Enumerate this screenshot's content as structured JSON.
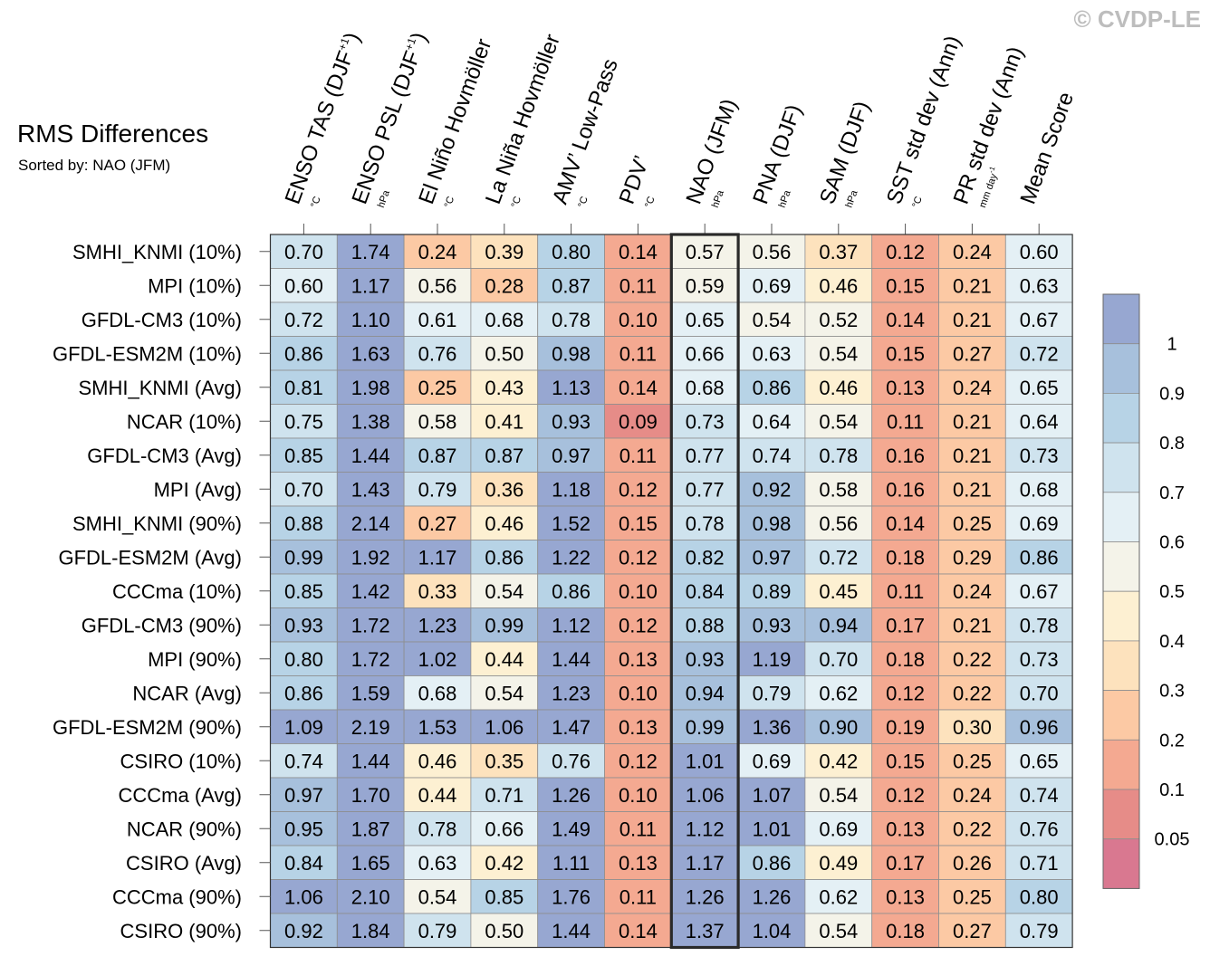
{
  "copyright": "© CVDP-LE",
  "chart_data": {
    "type": "heatmap",
    "title": "RMS Differences",
    "subtitle": "Sorted by: NAO (JFM)",
    "highlight_column": "NAO (JFM)",
    "columns": [
      {
        "name": "ENSO TAS (DJF",
        "sup": "+1",
        "close": ")",
        "unit": "°C"
      },
      {
        "name": "ENSO PSL (DJF",
        "sup": "+1",
        "close": ")",
        "unit": "hPa"
      },
      {
        "name": "El Niño Hovmöller",
        "sup": "",
        "close": "",
        "unit": "°C"
      },
      {
        "name": "La Niña Hovmöller",
        "sup": "",
        "close": "",
        "unit": "°C"
      },
      {
        "name": "AMV’ Low-Pass",
        "sup": "",
        "close": "",
        "unit": "°C"
      },
      {
        "name": "PDV’",
        "sup": "",
        "close": "",
        "unit": "°C"
      },
      {
        "name": "NAO (JFM)",
        "sup": "",
        "close": "",
        "unit": "hPa"
      },
      {
        "name": "PNA (DJF)",
        "sup": "",
        "close": "",
        "unit": "hPa"
      },
      {
        "name": "SAM (DJF)",
        "sup": "",
        "close": "",
        "unit": "hPa"
      },
      {
        "name": "SST std dev (Ann)",
        "sup": "",
        "close": "",
        "unit": "°C"
      },
      {
        "name": "PR std dev (Ann)",
        "sup": "",
        "close": "",
        "unit": "mm day",
        "unit_sup": "-1"
      },
      {
        "name": "Mean Score",
        "sup": "",
        "close": "",
        "unit": ""
      }
    ],
    "rows": [
      {
        "label": "SMHI_KNMI (10%)",
        "values": [
          0.7,
          1.74,
          0.24,
          0.39,
          0.8,
          0.14,
          0.57,
          0.56,
          0.37,
          0.12,
          0.24,
          0.6
        ]
      },
      {
        "label": "MPI (10%)",
        "values": [
          0.6,
          1.17,
          0.56,
          0.28,
          0.87,
          0.11,
          0.59,
          0.69,
          0.46,
          0.15,
          0.21,
          0.63
        ]
      },
      {
        "label": "GFDL-CM3 (10%)",
        "values": [
          0.72,
          1.1,
          0.61,
          0.68,
          0.78,
          0.1,
          0.65,
          0.54,
          0.52,
          0.14,
          0.21,
          0.67
        ]
      },
      {
        "label": "GFDL-ESM2M (10%)",
        "values": [
          0.86,
          1.63,
          0.76,
          0.5,
          0.98,
          0.11,
          0.66,
          0.63,
          0.54,
          0.15,
          0.27,
          0.72
        ]
      },
      {
        "label": "SMHI_KNMI (Avg)",
        "values": [
          0.81,
          1.98,
          0.25,
          0.43,
          1.13,
          0.14,
          0.68,
          0.86,
          0.46,
          0.13,
          0.24,
          0.65
        ]
      },
      {
        "label": "NCAR (10%)",
        "values": [
          0.75,
          1.38,
          0.58,
          0.41,
          0.93,
          0.09,
          0.73,
          0.64,
          0.54,
          0.11,
          0.21,
          0.64
        ]
      },
      {
        "label": "GFDL-CM3 (Avg)",
        "values": [
          0.85,
          1.44,
          0.87,
          0.87,
          0.97,
          0.11,
          0.77,
          0.74,
          0.78,
          0.16,
          0.21,
          0.73
        ]
      },
      {
        "label": "MPI (Avg)",
        "values": [
          0.7,
          1.43,
          0.79,
          0.36,
          1.18,
          0.12,
          0.77,
          0.92,
          0.58,
          0.16,
          0.21,
          0.68
        ]
      },
      {
        "label": "SMHI_KNMI (90%)",
        "values": [
          0.88,
          2.14,
          0.27,
          0.46,
          1.52,
          0.15,
          0.78,
          0.98,
          0.56,
          0.14,
          0.25,
          0.69
        ]
      },
      {
        "label": "GFDL-ESM2M (Avg)",
        "values": [
          0.99,
          1.92,
          1.17,
          0.86,
          1.22,
          0.12,
          0.82,
          0.97,
          0.72,
          0.18,
          0.29,
          0.86
        ]
      },
      {
        "label": "CCCma (10%)",
        "values": [
          0.85,
          1.42,
          0.33,
          0.54,
          0.86,
          0.1,
          0.84,
          0.89,
          0.45,
          0.11,
          0.24,
          0.67
        ]
      },
      {
        "label": "GFDL-CM3 (90%)",
        "values": [
          0.93,
          1.72,
          1.23,
          0.99,
          1.12,
          0.12,
          0.88,
          0.93,
          0.94,
          0.17,
          0.21,
          0.78
        ]
      },
      {
        "label": "MPI (90%)",
        "values": [
          0.8,
          1.72,
          1.02,
          0.44,
          1.44,
          0.13,
          0.93,
          1.19,
          0.7,
          0.18,
          0.22,
          0.73
        ]
      },
      {
        "label": "NCAR (Avg)",
        "values": [
          0.86,
          1.59,
          0.68,
          0.54,
          1.23,
          0.1,
          0.94,
          0.79,
          0.62,
          0.12,
          0.22,
          0.7
        ]
      },
      {
        "label": "GFDL-ESM2M (90%)",
        "values": [
          1.09,
          2.19,
          1.53,
          1.06,
          1.47,
          0.13,
          0.99,
          1.36,
          0.9,
          0.19,
          0.3,
          0.96
        ]
      },
      {
        "label": "CSIRO (10%)",
        "values": [
          0.74,
          1.44,
          0.46,
          0.35,
          0.76,
          0.12,
          1.01,
          0.69,
          0.42,
          0.15,
          0.25,
          0.65
        ]
      },
      {
        "label": "CCCma (Avg)",
        "values": [
          0.97,
          1.7,
          0.44,
          0.71,
          1.26,
          0.1,
          1.06,
          1.07,
          0.54,
          0.12,
          0.24,
          0.74
        ]
      },
      {
        "label": "NCAR (90%)",
        "values": [
          0.95,
          1.87,
          0.78,
          0.66,
          1.49,
          0.11,
          1.12,
          1.01,
          0.69,
          0.13,
          0.22,
          0.76
        ]
      },
      {
        "label": "CSIRO (Avg)",
        "values": [
          0.84,
          1.65,
          0.63,
          0.42,
          1.11,
          0.13,
          1.17,
          0.86,
          0.49,
          0.17,
          0.26,
          0.71
        ]
      },
      {
        "label": "CCCma (90%)",
        "values": [
          1.06,
          2.1,
          0.54,
          0.85,
          1.76,
          0.11,
          1.26,
          1.26,
          0.62,
          0.13,
          0.25,
          0.8
        ]
      },
      {
        "label": "CSIRO (90%)",
        "values": [
          0.92,
          1.84,
          0.79,
          0.5,
          1.44,
          0.14,
          1.37,
          1.04,
          0.54,
          0.18,
          0.27,
          0.79
        ]
      }
    ],
    "colorbar": {
      "labels": [
        "1",
        "0.9",
        "0.8",
        "0.7",
        "0.6",
        "0.5",
        "0.4",
        "0.3",
        "0.2",
        "0.1",
        "0.05"
      ],
      "boundaries": [
        1,
        0.9,
        0.8,
        0.7,
        0.6,
        0.5,
        0.4,
        0.3,
        0.2,
        0.1,
        0.05
      ],
      "colors": [
        "#97a7d1",
        "#a7c0dc",
        "#b7d3e6",
        "#cfe3ee",
        "#e4f0f5",
        "#f4f3e9",
        "#fdf0d2",
        "#fde2bd",
        "#fcc9a4",
        "#f4a991",
        "#e68c88",
        "#d97890"
      ]
    }
  }
}
